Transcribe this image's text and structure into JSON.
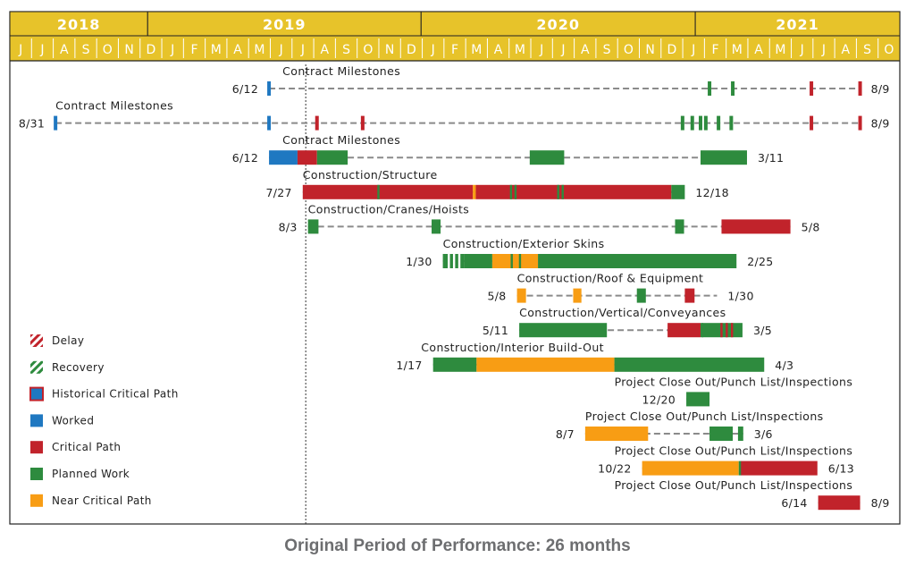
{
  "colors": {
    "header": "#e7c32a",
    "header_line": "#ffffff",
    "delay": "#c1232b",
    "recovery": "#2e8b3e",
    "historical_critical_path": "#1f78c1",
    "worked": "#1f78c1",
    "critical_path": "#c1232b",
    "planned_work": "#2e8b3e",
    "near_critical_path": "#f89d14",
    "dash": "#8a8a8a"
  },
  "caption": "Original Period of Performance: 26 months",
  "chart_data": {
    "type": "gantt",
    "time_start": "2018-07",
    "time_end": "2021-10",
    "years": [
      {
        "label": "2018",
        "from": "2018-07",
        "to": "2019-01"
      },
      {
        "label": "2019",
        "from": "2019-01",
        "to": "2020-01"
      },
      {
        "label": "2020",
        "from": "2020-01",
        "to": "2021-01"
      },
      {
        "label": "2021",
        "from": "2021-01",
        "to": "2021-10"
      }
    ],
    "months": [
      "J",
      "J",
      "A",
      "S",
      "O",
      "N",
      "D",
      "J",
      "F",
      "M",
      "A",
      "M",
      "J",
      "J",
      "A",
      "S",
      "O",
      "N",
      "D",
      "J",
      "F",
      "M",
      "A",
      "M",
      "J",
      "J",
      "A",
      "S",
      "O",
      "N",
      "D",
      "J",
      "F",
      "M",
      "A",
      "M",
      "J",
      "J",
      "A",
      "S",
      "O"
    ],
    "data_date": "2019-07-31",
    "legend": [
      {
        "label": "Delay",
        "style": "delay"
      },
      {
        "label": "Recovery",
        "style": "recovery"
      },
      {
        "label": "Historical Critical Path",
        "style": "historical_critical_path"
      },
      {
        "label": "Worked",
        "style": "worked"
      },
      {
        "label": "Critical Path",
        "style": "critical_path"
      },
      {
        "label": "Planned Work",
        "style": "planned_work"
      },
      {
        "label": "Near Critical Path",
        "style": "near_critical_path"
      }
    ],
    "rows": [
      {
        "label": "Contract Milestones",
        "start_label": "6/12",
        "end_label": "8/9",
        "label_at": "2019-06-30",
        "line": [
          "2019-06-12",
          "2021-08-09"
        ],
        "ticks": [
          {
            "date": "2019-06-12",
            "status": "worked"
          },
          {
            "date": "2021-01-20",
            "status": "planned_work"
          },
          {
            "date": "2021-02-20",
            "status": "planned_work"
          },
          {
            "date": "2021-06-05",
            "status": "critical_path"
          },
          {
            "date": "2021-08-09",
            "status": "critical_path"
          }
        ],
        "segments": []
      },
      {
        "label": "Contract Milestones",
        "start_label": "8/31",
        "end_label": "8/9",
        "label_at": "2018-08-31",
        "line": [
          "2018-08-31",
          "2021-08-09"
        ],
        "ticks": [
          {
            "date": "2018-08-31",
            "status": "worked"
          },
          {
            "date": "2019-06-12",
            "status": "worked"
          },
          {
            "date": "2019-08-15",
            "status": "critical_path"
          },
          {
            "date": "2019-10-15",
            "status": "critical_path"
          },
          {
            "date": "2020-12-15",
            "status": "planned_work"
          },
          {
            "date": "2020-12-28",
            "status": "planned_work"
          },
          {
            "date": "2021-01-08",
            "status": "planned_work"
          },
          {
            "date": "2021-01-15",
            "status": "planned_work"
          },
          {
            "date": "2021-02-01",
            "status": "planned_work"
          },
          {
            "date": "2021-02-18",
            "status": "planned_work"
          },
          {
            "date": "2021-06-05",
            "status": "critical_path"
          },
          {
            "date": "2021-08-09",
            "status": "critical_path"
          }
        ],
        "segments": []
      },
      {
        "label": "Contract Milestones",
        "start_label": "6/12",
        "end_label": "3/11",
        "label_at": "2019-06-30",
        "line": [
          "2019-06-12",
          "2021-03-11"
        ],
        "ticks": [],
        "segments": [
          {
            "from": "2019-06-12",
            "to": "2019-07-20",
            "status": "worked"
          },
          {
            "from": "2019-07-20",
            "to": "2019-08-15",
            "status": "critical_path"
          },
          {
            "from": "2019-08-15",
            "to": "2019-09-25",
            "status": "planned_work"
          },
          {
            "from": "2020-05-25",
            "to": "2020-07-10",
            "status": "planned_work"
          },
          {
            "from": "2021-01-08",
            "to": "2021-03-11",
            "status": "planned_work"
          }
        ]
      },
      {
        "label": "Construction/Structure",
        "start_label": "7/27",
        "end_label": "12/18",
        "label_at": "2019-07-27",
        "line": [
          "2019-07-27",
          "2020-12-18"
        ],
        "ticks": [],
        "segments": [
          {
            "from": "2019-07-27",
            "to": "2020-03-10",
            "status": "critical_path"
          },
          {
            "from": "2020-03-10",
            "to": "2020-03-14",
            "status": "near_critical_path"
          },
          {
            "from": "2020-03-14",
            "to": "2020-11-30",
            "status": "critical_path"
          },
          {
            "from": "2020-11-30",
            "to": "2020-12-18",
            "status": "planned_work"
          }
        ],
        "marks": [
          {
            "date": "2019-11-05",
            "status": "planned_work"
          },
          {
            "date": "2020-04-30",
            "status": "planned_work"
          },
          {
            "date": "2020-05-06",
            "status": "planned_work"
          },
          {
            "date": "2020-07-02",
            "status": "planned_work"
          },
          {
            "date": "2020-07-08",
            "status": "planned_work"
          }
        ]
      },
      {
        "label": "Construction/Cranes/Hoists",
        "start_label": "8/3",
        "end_label": "5/8",
        "label_at": "2019-08-03",
        "line": [
          "2019-08-03",
          "2021-05-08"
        ],
        "ticks": [],
        "segments": [
          {
            "from": "2019-08-03",
            "to": "2019-08-17",
            "status": "planned_work"
          },
          {
            "from": "2020-01-15",
            "to": "2020-01-27",
            "status": "planned_work"
          },
          {
            "from": "2020-12-05",
            "to": "2020-12-17",
            "status": "planned_work"
          },
          {
            "from": "2021-02-05",
            "to": "2021-05-08",
            "status": "critical_path"
          }
        ]
      },
      {
        "label": "Construction/Exterior Skins",
        "start_label": "1/30",
        "end_label": "2/25",
        "label_at": "2020-01-30",
        "line": [
          "2020-01-30",
          "2021-02-25"
        ],
        "ticks": [],
        "segments": [
          {
            "from": "2020-01-30",
            "to": "2020-02-28",
            "status": "planned_work"
          },
          {
            "from": "2020-02-28",
            "to": "2020-04-05",
            "status": "planned_work"
          },
          {
            "from": "2020-04-05",
            "to": "2020-06-05",
            "status": "near_critical_path"
          },
          {
            "from": "2020-06-05",
            "to": "2021-02-25",
            "status": "planned_work"
          }
        ],
        "marks": [
          {
            "date": "2020-02-07",
            "status": "white"
          },
          {
            "date": "2020-02-14",
            "status": "white"
          },
          {
            "date": "2020-02-21",
            "status": "white"
          },
          {
            "date": "2020-05-01",
            "status": "planned_work"
          },
          {
            "date": "2020-05-12",
            "status": "planned_work"
          }
        ]
      },
      {
        "label": "Construction/Roof & Equipment",
        "start_label": "5/8",
        "end_label": "1/30",
        "label_at": "2020-05-08",
        "line": [
          "2020-05-08",
          "2021-01-30"
        ],
        "ticks": [],
        "segments": [
          {
            "from": "2020-05-08",
            "to": "2020-05-20",
            "status": "near_critical_path"
          },
          {
            "from": "2020-07-22",
            "to": "2020-08-02",
            "status": "near_critical_path"
          },
          {
            "from": "2020-10-15",
            "to": "2020-10-27",
            "status": "planned_work"
          },
          {
            "from": "2020-12-18",
            "to": "2020-12-31",
            "status": "critical_path"
          }
        ]
      },
      {
        "label": "Construction/Vertical/Conveyances",
        "start_label": "5/11",
        "end_label": "3/5",
        "label_at": "2020-05-11",
        "line": [
          "2020-05-11",
          "2021-03-05"
        ],
        "ticks": [],
        "segments": [
          {
            "from": "2020-05-11",
            "to": "2020-09-05",
            "status": "planned_work"
          },
          {
            "from": "2020-11-25",
            "to": "2021-01-08",
            "status": "critical_path"
          },
          {
            "from": "2021-01-08",
            "to": "2021-01-10",
            "status": "planned_work"
          },
          {
            "from": "2021-01-10",
            "to": "2021-03-05",
            "status": "planned_work"
          }
        ],
        "marks": [
          {
            "date": "2021-02-05",
            "status": "critical_path"
          },
          {
            "date": "2021-02-12",
            "status": "critical_path"
          },
          {
            "date": "2021-02-19",
            "status": "critical_path"
          }
        ]
      },
      {
        "label": "Construction/Interior Build-Out",
        "start_label": "1/17",
        "end_label": "4/3",
        "label_at": "2020-01-01",
        "line": [
          "2020-01-17",
          "2021-04-03"
        ],
        "ticks": [],
        "segments": [
          {
            "from": "2020-01-17",
            "to": "2020-03-15",
            "status": "planned_work"
          },
          {
            "from": "2020-03-15",
            "to": "2020-09-15",
            "status": "near_critical_path"
          },
          {
            "from": "2020-09-15",
            "to": "2021-04-03",
            "status": "planned_work"
          }
        ]
      },
      {
        "label": "Project Close Out/Punch List/Inspections",
        "start_label": "12/20",
        "end_label": "",
        "label_at": "2020-09-15",
        "line": [
          "2020-12-20",
          "2021-01-20"
        ],
        "ticks": [],
        "segments": [
          {
            "from": "2020-12-20",
            "to": "2021-01-20",
            "status": "planned_work"
          }
        ]
      },
      {
        "label": "Project Close Out/Punch List/Inspections",
        "start_label": "8/7",
        "end_label": "3/6",
        "label_at": "2020-08-07",
        "line": [
          "2020-08-07",
          "2021-03-06"
        ],
        "ticks": [],
        "segments": [
          {
            "from": "2020-08-07",
            "to": "2020-10-30",
            "status": "near_critical_path"
          },
          {
            "from": "2021-01-20",
            "to": "2021-02-20",
            "status": "planned_work"
          },
          {
            "from": "2021-02-27",
            "to": "2021-03-06",
            "status": "planned_work"
          }
        ]
      },
      {
        "label": "Project Close Out/Punch List/Inspections",
        "start_label": "10/22",
        "end_label": "6/13",
        "label_at": "2020-09-15",
        "line": [
          "2020-10-22",
          "2021-06-13"
        ],
        "ticks": [],
        "segments": [
          {
            "from": "2020-10-22",
            "to": "2021-02-28",
            "status": "near_critical_path"
          },
          {
            "from": "2021-02-28",
            "to": "2021-03-03",
            "status": "planned_work"
          },
          {
            "from": "2021-03-03",
            "to": "2021-06-13",
            "status": "critical_path"
          }
        ]
      },
      {
        "label": "Project Close Out/Punch List/Inspections",
        "start_label": "6/14",
        "end_label": "8/9",
        "label_at": "2020-09-15",
        "line": [
          "2021-06-14",
          "2021-08-09"
        ],
        "ticks": [],
        "segments": [
          {
            "from": "2021-06-14",
            "to": "2021-08-09",
            "status": "critical_path"
          }
        ]
      }
    ]
  }
}
